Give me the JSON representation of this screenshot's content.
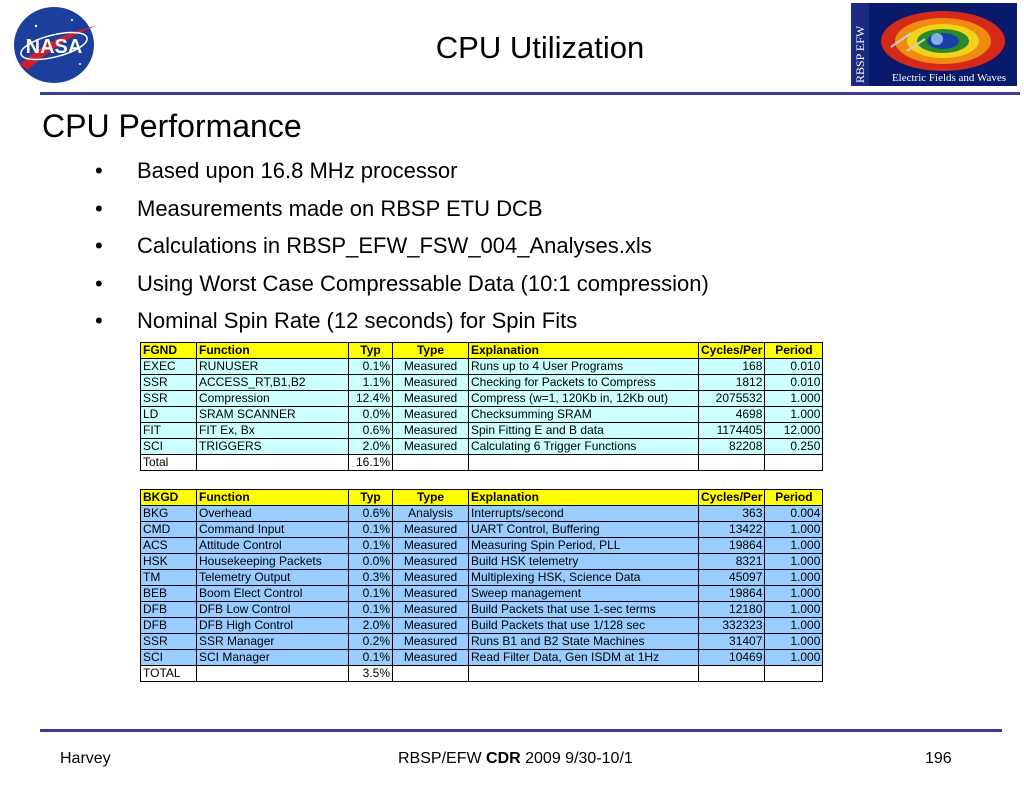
{
  "header": {
    "title": "CPU Utilization",
    "nasa_logo_text": "NASA",
    "efw_logo_title": "RBSP EFW",
    "efw_logo_subtitle": "Electric Fields and Waves"
  },
  "main": {
    "heading": "CPU Performance",
    "bullets": [
      "Based upon 16.8 MHz processor",
      "Measurements made on RBSP ETU DCB",
      "Calculations in RBSP_EFW_FSW_004_Analyses.xls",
      "Using Worst Case Compressable Data (10:1 compression)",
      "Nominal Spin Rate (12 seconds) for Spin Fits"
    ],
    "bullet_glyph": "•"
  },
  "fg_table": {
    "headers": [
      "FGND",
      "Function",
      "Typ",
      "Type",
      "Explanation",
      "Cycles/Per",
      "Period"
    ],
    "rows": [
      [
        "EXEC",
        "RUNUSER",
        "0.1%",
        "Measured",
        "Runs up to 4 User Programs",
        "168",
        "0.010"
      ],
      [
        "SSR",
        "ACCESS_RT,B1,B2",
        "1.1%",
        "Measured",
        "Checking for Packets to Compress",
        "1812",
        "0.010"
      ],
      [
        "SSR",
        "Compression",
        "12.4%",
        "Measured",
        "Compress (w=1, 120Kb in, 12Kb out)",
        "2075532",
        "1.000"
      ],
      [
        "LD",
        "SRAM SCANNER",
        "0.0%",
        "Measured",
        "Checksumming SRAM",
        "4698",
        "1.000"
      ],
      [
        "FIT",
        "FIT Ex, Bx",
        "0.6%",
        "Measured",
        "Spin Fitting E and B data",
        "1174405",
        "12.000"
      ],
      [
        "SCI",
        "TRIGGERS",
        "2.0%",
        "Measured",
        "Calculating 6 Trigger Functions",
        "82208",
        "0.250"
      ]
    ],
    "total": [
      "Total",
      "",
      "16.1%",
      "",
      "",
      "",
      ""
    ]
  },
  "bg_table": {
    "headers": [
      "BKGD",
      "Function",
      "Typ",
      "Type",
      "Explanation",
      "Cycles/Per",
      "Period"
    ],
    "rows": [
      [
        "BKG",
        "Overhead",
        "0.6%",
        "Analysis",
        "Interrupts/second",
        "363",
        "0.004"
      ],
      [
        "CMD",
        "Command Input",
        "0.1%",
        "Measured",
        "UART Control, Buffering",
        "13422",
        "1.000"
      ],
      [
        "ACS",
        "Attitude Control",
        "0.1%",
        "Measured",
        "Measuring Spin Period, PLL",
        "19864",
        "1.000"
      ],
      [
        "HSK",
        "Housekeeping Packets",
        "0.0%",
        "Measured",
        "Build HSK telemetry",
        "8321",
        "1.000"
      ],
      [
        "TM",
        "Telemetry Output",
        "0.3%",
        "Measured",
        "Multiplexing HSK, Science Data",
        "45097",
        "1.000"
      ],
      [
        "BEB",
        "Boom Elect Control",
        "0.1%",
        "Measured",
        "Sweep management",
        "19864",
        "1.000"
      ],
      [
        "DFB",
        "DFB Low Control",
        "0.1%",
        "Measured",
        "Build Packets that use 1-sec terms",
        "12180",
        "1.000"
      ],
      [
        "DFB",
        "DFB High Control",
        "2.0%",
        "Measured",
        "Build Packets that use 1/128 sec",
        "332323",
        "1.000"
      ],
      [
        "SSR",
        "SSR Manager",
        "0.2%",
        "Measured",
        "Runs B1 and B2 State Machines",
        "31407",
        "1.000"
      ],
      [
        "SCI",
        "SCI Manager",
        "0.1%",
        "Measured",
        "Read Filter Data, Gen ISDM at 1Hz",
        "10469",
        "1.000"
      ]
    ],
    "total": [
      "TOTAL",
      "",
      "3.5%",
      "",
      "",
      "",
      ""
    ]
  },
  "footer": {
    "left": "Harvey",
    "center_prefix": "RBSP/EFW ",
    "center_bold": "CDR",
    "center_suffix": " 2009 9/30-10/1",
    "page": "196"
  },
  "colors": {
    "rule": "#3c3c9e",
    "header_fill": "#ffff00",
    "fg_row_fill": "#ccffff",
    "bg_row_fill": "#99ccff"
  }
}
